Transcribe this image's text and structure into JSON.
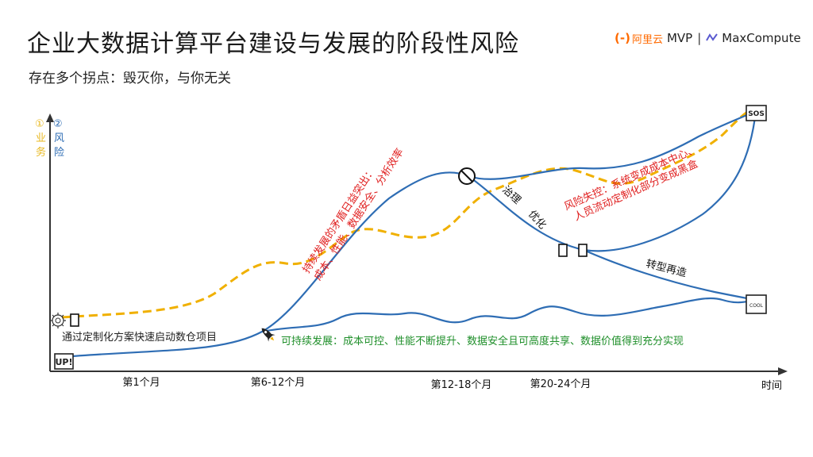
{
  "title": "企业大数据计算平台建设与发展的阶段性风险",
  "subtitle": "存在多个拐点：毁灭你，与你无关",
  "logo": {
    "aliyun_text": "阿里云",
    "mvp": "MVP",
    "maxcompute": "MaxCompute"
  },
  "legend": {
    "business_num": "①",
    "business_chars": [
      "业",
      "务"
    ],
    "risk_num": "②",
    "risk_chars": [
      "风",
      "险"
    ]
  },
  "axis": {
    "x_label": "时间",
    "ticks": [
      "第1个月",
      "第6-12个月",
      "第12-18个月",
      "第20-24个月"
    ]
  },
  "markers": {
    "start": "UP!",
    "top_end": "SOS",
    "bottom_end": "COOL"
  },
  "annotations": {
    "start_text": "通过定制化方案快速启动数仓项目",
    "sustainable": "可持续发展：成本可控、性能不断提升、数据安全且可高度共享、数据价值得到充分实现",
    "conflict_line1": "持续发展的矛盾日益突出：",
    "conflict_line2": "成本、性能、数据安全、分析效率",
    "govern": "治理",
    "optimize": "优化",
    "risk_line1": "风险失控：系统变成成本中心、",
    "risk_line2": "人员流动定制化部分变成黑盒",
    "transform": "转型再造"
  },
  "colors": {
    "risk_line": "#2e6db4",
    "business_line": "#f0b000",
    "business_legend": "#e8b820",
    "risk_text": "#e02020",
    "sustain_text": "#1f8f2a",
    "axis": "#333333"
  }
}
